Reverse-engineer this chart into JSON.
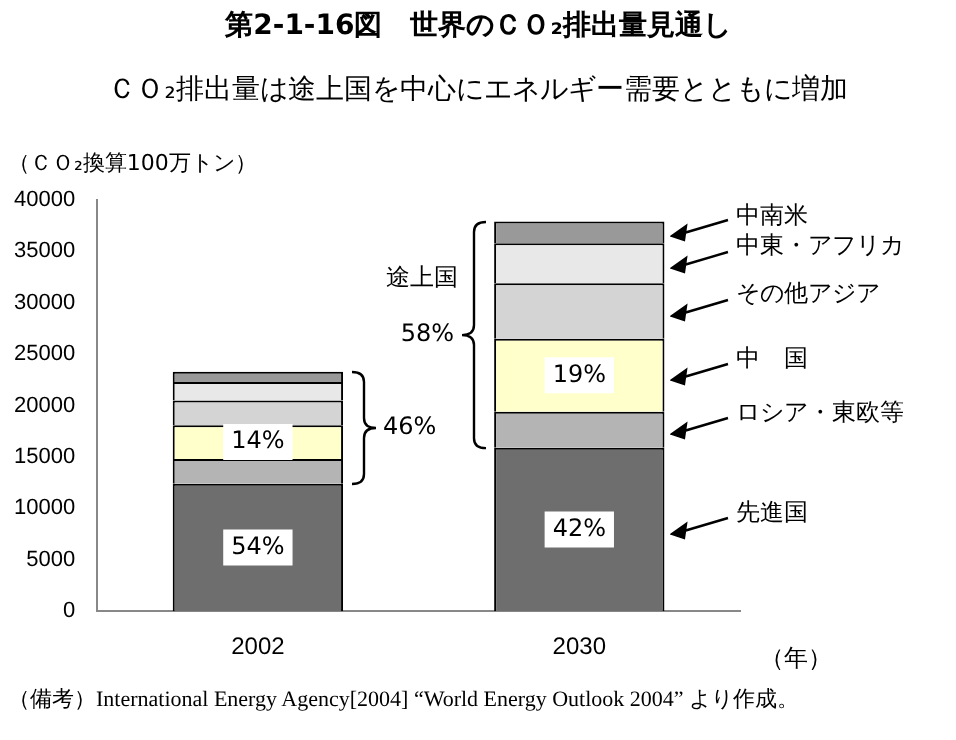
{
  "chart_data": {
    "type": "bar",
    "title": "第2-1-16図　世界のＣＯ₂排出量見通し",
    "subtitle": "ＣＯ₂排出量は途上国を中心にエネルギー需要とともに増加",
    "ylabel": "（ＣＯ₂換算100万トン）",
    "xlabel": "（年）",
    "categories": [
      "2002",
      "2030"
    ],
    "stacked": true,
    "ylim": [
      0,
      40000
    ],
    "yticks": [
      0,
      5000,
      10000,
      15000,
      20000,
      25000,
      30000,
      35000,
      40000
    ],
    "grid": false,
    "legend": false,
    "series": [
      {
        "name": "先進国",
        "color": "#6e6e6e",
        "values": [
          12400,
          15900
        ]
      },
      {
        "name": "ロシア・東欧等",
        "color": "#b4b4b4",
        "values": [
          2400,
          3500
        ]
      },
      {
        "name": "中　国",
        "color": "#ffffcc",
        "values": [
          3300,
          7100
        ]
      },
      {
        "name": "その他アジア",
        "color": "#d4d4d4",
        "values": [
          2400,
          5400
        ]
      },
      {
        "name": "中東・アフリカ",
        "color": "#e8e8e8",
        "values": [
          1800,
          3900
        ]
      },
      {
        "name": "中南米",
        "color": "#999999",
        "values": [
          1000,
          2100
        ]
      }
    ],
    "annotations": [
      {
        "text": "54%",
        "x": "2002",
        "y": 6200
      },
      {
        "text": "42%",
        "x": "2030",
        "y": 7950
      },
      {
        "text": "14%",
        "x": "2002",
        "y": 16450
      },
      {
        "text": "19%",
        "x": "2030",
        "y": 22950
      },
      "46%",
      "途上国",
      "58%",
      "（備考）International Energy Agency[2004] “World Energy Outlook 2004” より作成。"
    ]
  }
}
